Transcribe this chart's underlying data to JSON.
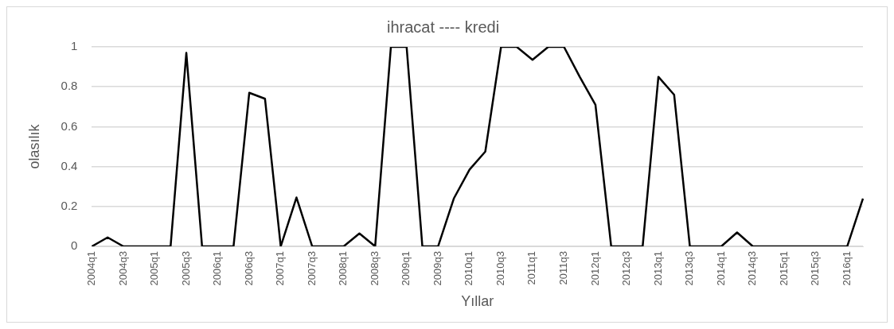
{
  "chart_data": {
    "type": "line",
    "title": "ihracat ---- kredi",
    "xlabel": "Yıllar",
    "ylabel": "olasılık",
    "categories": [
      "2004q1",
      null,
      "2004q3",
      null,
      "2005q1",
      null,
      "2005q3",
      null,
      "2006q1",
      null,
      "2006q3",
      null,
      "2007q1",
      null,
      "2007q3",
      null,
      "2008q1",
      null,
      "2008q3",
      null,
      "2009q1",
      null,
      "2009q3",
      null,
      "2010q1",
      null,
      "2010q3",
      null,
      "2011q1",
      null,
      "2011q3",
      null,
      "2012q1",
      null,
      "2012q3",
      null,
      "2013q1",
      null,
      "2013q3",
      null,
      "2014q1",
      null,
      "2014q3",
      null,
      "2015q1",
      null,
      "2015q3",
      null,
      "2016q1",
      null
    ],
    "series": [
      {
        "color": "#000000",
        "values": [
          0,
          0.045,
          0,
          0,
          0,
          0,
          0.97,
          0,
          0,
          0,
          0.77,
          0.74,
          0,
          0.245,
          0,
          0,
          0,
          0.065,
          0,
          1,
          1,
          0,
          0,
          0.24,
          0.385,
          0.475,
          1,
          1,
          0.935,
          1,
          1,
          0.85,
          0.71,
          0,
          0,
          0,
          0.85,
          0.76,
          0,
          0,
          0,
          0.07,
          0,
          0,
          0,
          0,
          0,
          0,
          0,
          0.24
        ]
      }
    ],
    "ylim": [
      0,
      1
    ],
    "yticks": [
      0,
      0.2,
      0.4,
      0.6,
      0.8,
      1
    ],
    "grid": "y",
    "legend": false,
    "marker": "none",
    "line_style": "solid"
  }
}
